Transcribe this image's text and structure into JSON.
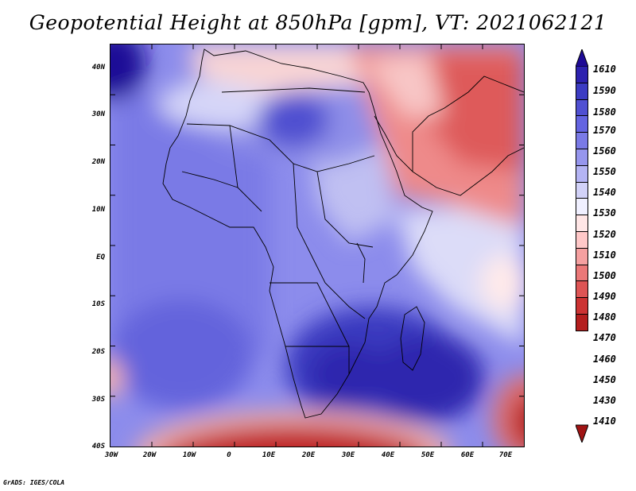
{
  "title": "Geopotential Height at 850hPa [gpm], VT: 2021062121",
  "footer": "GrADS: IGES/COLA",
  "map": {
    "lat_labels": [
      "40N",
      "30N",
      "20N",
      "10N",
      "EQ",
      "10S",
      "20S",
      "30S",
      "40S"
    ],
    "lon_labels": [
      "30W",
      "20W",
      "10W",
      "0",
      "10E",
      "20E",
      "30E",
      "40E",
      "50E",
      "60E",
      "70E"
    ]
  },
  "colorbar": {
    "levels": [
      "1610",
      "1590",
      "1580",
      "1570",
      "1560",
      "1550",
      "1540",
      "1530",
      "1520",
      "1510",
      "1500",
      "1490",
      "1480",
      "1470",
      "1460",
      "1450",
      "1430",
      "1410"
    ],
    "colors": [
      "#1e0a96",
      "#2d22af",
      "#3c3cc3",
      "#5050d2",
      "#6464e1",
      "#7a7ae6",
      "#9696ee",
      "#b4b4f4",
      "#d2d2f8",
      "#f0f0ff",
      "#ffe6e6",
      "#ffc8c8",
      "#f5a0a0",
      "#eb7878",
      "#de5555",
      "#cc3333",
      "#b41e1e",
      "#a01414"
    ]
  }
}
